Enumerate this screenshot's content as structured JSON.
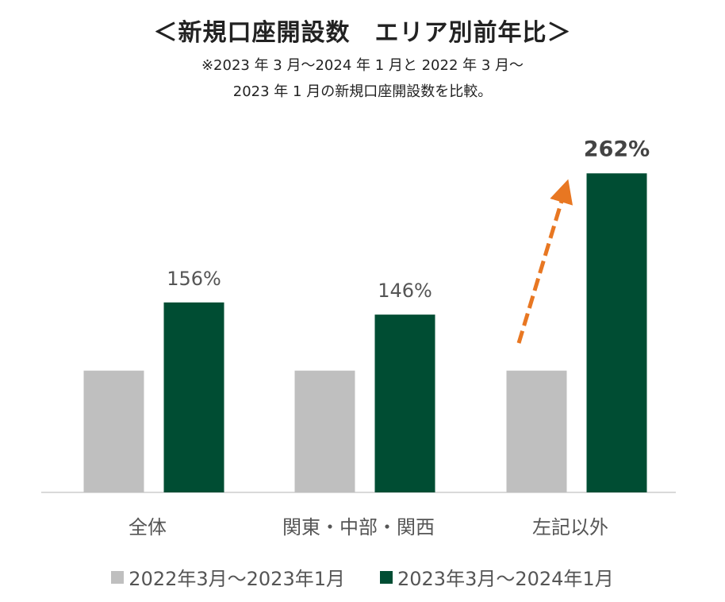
{
  "title": "＜新規口座開設数　エリア別前年比＞",
  "subtitle_line1": "※2023 年 3 月～2024 年 1 月と 2022 年 3 月～",
  "subtitle_line2": "2023 年 1 月の新規口座開設数を比較。",
  "colors": {
    "prev": "#bfbfbf",
    "curr": "#004d33",
    "arrow": "#e87722",
    "axis": "#d9d9d9",
    "label": "#555555",
    "emph": "#444444"
  },
  "chart_data": {
    "type": "bar",
    "categories": [
      "全体",
      "関東・中部・関西",
      "左記以外"
    ],
    "series": [
      {
        "name": "2022年3月～2023年1月",
        "values": [
          100,
          100,
          100
        ]
      },
      {
        "name": "2023年3月～2024年1月",
        "values": [
          156,
          146,
          262
        ]
      }
    ],
    "data_labels": [
      "156%",
      "146%",
      "262%"
    ],
    "emphasized_label_index": 2,
    "ylim": [
      0,
      300
    ],
    "annotation": "upward-arrow-on-左記以外"
  }
}
